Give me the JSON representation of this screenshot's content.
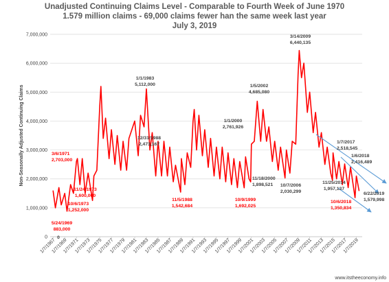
{
  "chart_data": {
    "type": "line",
    "title_lines": [
      "Unadjusted Continuing Claims Level - Comparable to Fourth Week of June 1970",
      "1.579 million claims - 69,000 claims fewer han the same week last year",
      "July 3, 2019"
    ],
    "ylabel": "Non-Seasonally Adjusted Continuing Claims",
    "xlabel": "",
    "ylim": [
      0,
      7000000
    ],
    "y_ticks": [
      "0",
      "1,000,000",
      "2,000,000",
      "3,000,000",
      "4,000,000",
      "5,000,000",
      "6,000,000",
      "7,000,000"
    ],
    "x_ticks": [
      "1/7/1967",
      "1/7/1969",
      "1/7/1971",
      "1/7/1973",
      "1/7/1975",
      "1/7/1977",
      "1/7/1979",
      "1/7/1981",
      "1/7/1983",
      "1/7/1985",
      "1/7/1987",
      "1/7/1989",
      "1/7/1991",
      "1/7/1993",
      "1/7/1995",
      "1/7/1997",
      "1/7/1999",
      "1/7/2001",
      "1/7/2003",
      "1/7/2005",
      "1/7/2007",
      "1/7/2009",
      "1/7/2011",
      "1/7/2013",
      "1/7/2015",
      "1/7/2017",
      "1/7/2019"
    ],
    "grid": true,
    "legend": "none",
    "series_color": "#ff0000",
    "series": [
      {
        "points": [
          [
            1967.0,
            1600000
          ],
          [
            1967.4,
            1000000
          ],
          [
            1968.0,
            1700000
          ],
          [
            1968.4,
            1100000
          ],
          [
            1969.0,
            1500000
          ],
          [
            1969.39,
            883000
          ],
          [
            1970.0,
            1800000
          ],
          [
            1970.5,
            1500000
          ],
          [
            1971.0,
            2600000
          ],
          [
            1971.17,
            2703000
          ],
          [
            1971.6,
            1800000
          ],
          [
            1972.0,
            2700000
          ],
          [
            1972.5,
            1500000
          ],
          [
            1973.0,
            2200000
          ],
          [
            1973.76,
            1252000
          ],
          [
            1974.0,
            2100000
          ],
          [
            1974.5,
            2300000
          ],
          [
            1975.0,
            4500000
          ],
          [
            1975.2,
            5200000
          ],
          [
            1975.6,
            3400000
          ],
          [
            1976.0,
            4100000
          ],
          [
            1976.6,
            2700000
          ],
          [
            1977.0,
            3700000
          ],
          [
            1977.6,
            2500000
          ],
          [
            1978.0,
            3500000
          ],
          [
            1978.6,
            2300000
          ],
          [
            1979.0,
            3300000
          ],
          [
            1979.6,
            2300000
          ],
          [
            1980.0,
            3400000
          ],
          [
            1980.5,
            3700000
          ],
          [
            1981.0,
            4000000
          ],
          [
            1981.6,
            2800000
          ],
          [
            1982.0,
            4200000
          ],
          [
            1982.6,
            3800000
          ],
          [
            1983.0,
            5112000
          ],
          [
            1983.6,
            3000000
          ],
          [
            1984.0,
            3600000
          ],
          [
            1984.6,
            2100000
          ],
          [
            1985.0,
            3300000
          ],
          [
            1985.6,
            2100000
          ],
          [
            1986.0,
            3300000
          ],
          [
            1986.6,
            2100000
          ],
          [
            1987.0,
            3100000
          ],
          [
            1987.6,
            1900000
          ],
          [
            1988.0,
            2473167
          ],
          [
            1988.87,
            1542684
          ],
          [
            1989.0,
            2700000
          ],
          [
            1989.6,
            1800000
          ],
          [
            1990.0,
            2900000
          ],
          [
            1990.6,
            2400000
          ],
          [
            1991.0,
            4000000
          ],
          [
            1991.2,
            4400000
          ],
          [
            1991.6,
            3000000
          ],
          [
            1992.0,
            4200000
          ],
          [
            1992.6,
            2800000
          ],
          [
            1993.0,
            3700000
          ],
          [
            1993.6,
            2400000
          ],
          [
            1994.0,
            3400000
          ],
          [
            1994.6,
            2100000
          ],
          [
            1995.0,
            3100000
          ],
          [
            1995.6,
            2000000
          ],
          [
            1996.0,
            3100000
          ],
          [
            1996.6,
            1900000
          ],
          [
            1997.0,
            2900000
          ],
          [
            1997.6,
            1800000
          ],
          [
            1998.0,
            2700000
          ],
          [
            1998.6,
            1700000
          ],
          [
            1999.0,
            2600000
          ],
          [
            1999.77,
            1692025
          ],
          [
            2000.0,
            2761926
          ],
          [
            2000.6,
            2000000
          ],
          [
            2000.88,
            1898521
          ],
          [
            2001.0,
            3200000
          ],
          [
            2001.5,
            3300000
          ],
          [
            2002.0,
            4685080
          ],
          [
            2002.6,
            3300000
          ],
          [
            2003.0,
            4400000
          ],
          [
            2003.6,
            3300000
          ],
          [
            2004.0,
            3800000
          ],
          [
            2004.6,
            2600000
          ],
          [
            2005.0,
            3300000
          ],
          [
            2005.6,
            2300000
          ],
          [
            2006.0,
            3100000
          ],
          [
            2006.77,
            2030299
          ],
          [
            2007.0,
            3000000
          ],
          [
            2007.6,
            2200000
          ],
          [
            2008.0,
            3300000
          ],
          [
            2008.6,
            3200000
          ],
          [
            2009.0,
            5600000
          ],
          [
            2009.2,
            6440135
          ],
          [
            2009.6,
            5500000
          ],
          [
            2010.0,
            6000000
          ],
          [
            2010.6,
            4300000
          ],
          [
            2011.0,
            5000000
          ],
          [
            2011.6,
            3600000
          ],
          [
            2012.0,
            4300000
          ],
          [
            2012.6,
            3100000
          ],
          [
            2013.0,
            3600000
          ],
          [
            2013.6,
            2500000
          ],
          [
            2014.0,
            3100000
          ],
          [
            2014.6,
            2200000
          ],
          [
            2014.9,
            1957137
          ],
          [
            2015.0,
            2900000
          ],
          [
            2015.6,
            2000000
          ],
          [
            2016.0,
            2600000
          ],
          [
            2016.6,
            1800000
          ],
          [
            2017.0,
            2518545
          ],
          [
            2017.6,
            1700000
          ],
          [
            2018.0,
            2416489
          ],
          [
            2018.77,
            1350834
          ],
          [
            2019.0,
            2100000
          ],
          [
            2019.47,
            1579998
          ]
        ]
      }
    ],
    "annotations": [
      {
        "text": [
          "5/24/1969",
          "883,000"
        ],
        "color": "#ff0000"
      },
      {
        "text": [
          "3/6/1971",
          "2,703,000"
        ],
        "color": "#ff0000"
      },
      {
        "text": [
          "10/6/1973",
          "1,252,000"
        ],
        "color": "#ff0000"
      },
      {
        "text": [
          "11/24/1973",
          "1,600,000"
        ],
        "color": "#ff0000"
      },
      {
        "text": [
          "1/1/1983",
          "5,112,000"
        ],
        "color": "#404040"
      },
      {
        "text": [
          "12/31/1988",
          "2,473,167"
        ],
        "color": "#404040"
      },
      {
        "text": [
          "11/5/1988",
          "1,542,684"
        ],
        "color": "#ff0000"
      },
      {
        "text": [
          "10/9/1999",
          "1,692,025"
        ],
        "color": "#ff0000"
      },
      {
        "text": [
          "1/1/2000",
          "2,761,926"
        ],
        "color": "#404040"
      },
      {
        "text": [
          "11/18/2000",
          "1,898,521"
        ],
        "color": "#404040"
      },
      {
        "text": [
          "1/5/2002",
          "4,685,080"
        ],
        "color": "#404040"
      },
      {
        "text": [
          "10/7/2006",
          "2,030,299"
        ],
        "color": "#404040"
      },
      {
        "text": [
          "3/14/2009",
          "6,440,135"
        ],
        "color": "#404040"
      },
      {
        "text": [
          "11/25/2014",
          "1,957,137"
        ],
        "color": "#404040"
      },
      {
        "text": [
          "1/7/2017",
          "2,518,545"
        ],
        "color": "#404040"
      },
      {
        "text": [
          "1/6/2018",
          "2,416,489"
        ],
        "color": "#404040"
      },
      {
        "text": [
          "10/6/2018",
          "1,350,834"
        ],
        "color": "#ff0000"
      },
      {
        "text": [
          "6/22/2019",
          "1,579,998"
        ],
        "color": "#404040"
      }
    ],
    "trend_color": "#5b9bd5"
  },
  "credit": "www.itstheeconomy.info"
}
